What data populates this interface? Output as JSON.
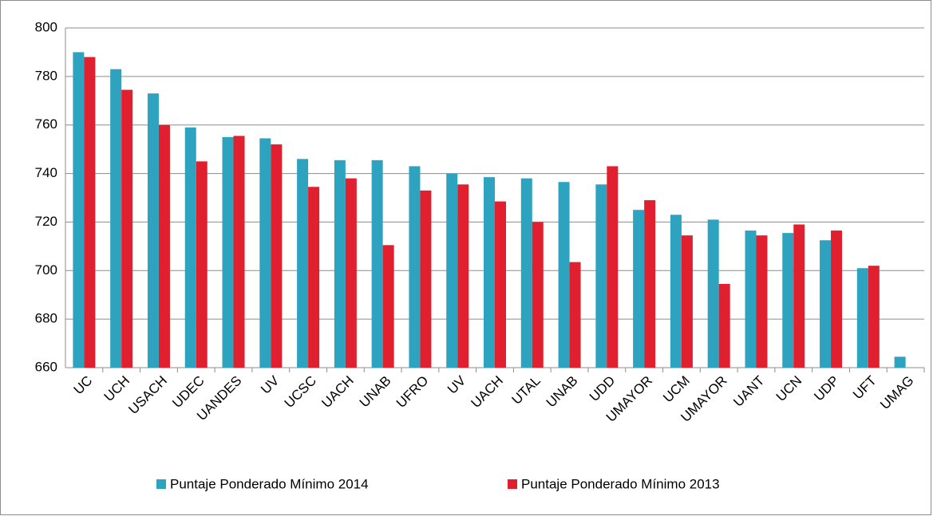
{
  "chart_data": {
    "type": "bar",
    "categories": [
      "UC",
      "UCH",
      "USACH",
      "UDEC",
      "UANDES",
      "UV",
      "UCSC",
      "UACH",
      "UNAB",
      "UFRO",
      "UV",
      "UACH",
      "UTAL",
      "UNAB",
      "UDD",
      "UMAYOR",
      "UCM",
      "UMAYOR",
      "UANT",
      "UCN",
      "UDP",
      "UFT",
      "UMAG"
    ],
    "series": [
      {
        "name": "Puntaje Ponderado Mínimo 2014",
        "color": "#2ea3bf",
        "values": [
          790,
          783,
          773,
          759,
          755,
          754.5,
          746,
          745.5,
          745.5,
          743,
          740,
          738.5,
          738,
          736.5,
          735.5,
          725,
          723,
          721,
          716.5,
          715.5,
          712.5,
          701,
          664.5
        ]
      },
      {
        "name": "Puntaje Ponderado Mínimo 2013",
        "color": "#e0202e",
        "values": [
          788,
          774.5,
          760,
          745,
          755.5,
          752,
          734.5,
          738,
          710.5,
          733,
          735.5,
          728.5,
          720,
          703.5,
          743,
          729,
          714.5,
          694.5,
          714.5,
          719,
          716.5,
          702,
          null
        ]
      }
    ],
    "ylim": [
      660,
      800
    ],
    "yticks": [
      660,
      680,
      700,
      720,
      740,
      760,
      780,
      800
    ],
    "grid": true,
    "legend": "bottom"
  }
}
